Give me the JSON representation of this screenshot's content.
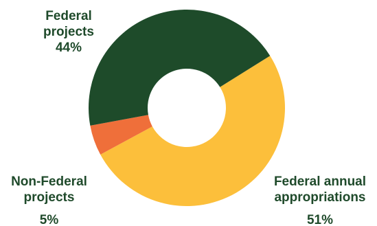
{
  "chart_data": {
    "type": "pie",
    "donut": true,
    "title": "",
    "categories": [
      "Federal annual appropriations",
      "Non-Federal projects",
      "Federal projects"
    ],
    "values": [
      51,
      5,
      44
    ],
    "unit": "%",
    "colors": [
      "#fcbf3b",
      "#ef6f3a",
      "#1e4b2a"
    ],
    "label_color": "#1f4a2b",
    "legend": "none"
  },
  "labels": {
    "federal_projects": {
      "line1": "Federal",
      "line2": "projects",
      "pct": "44%"
    },
    "non_federal_projects": {
      "line1": "Non-Federal",
      "line2": "projects",
      "pct": "5%"
    },
    "federal_annual": {
      "line1": "Federal annual",
      "line2": "appropriations",
      "pct": "51%"
    }
  }
}
